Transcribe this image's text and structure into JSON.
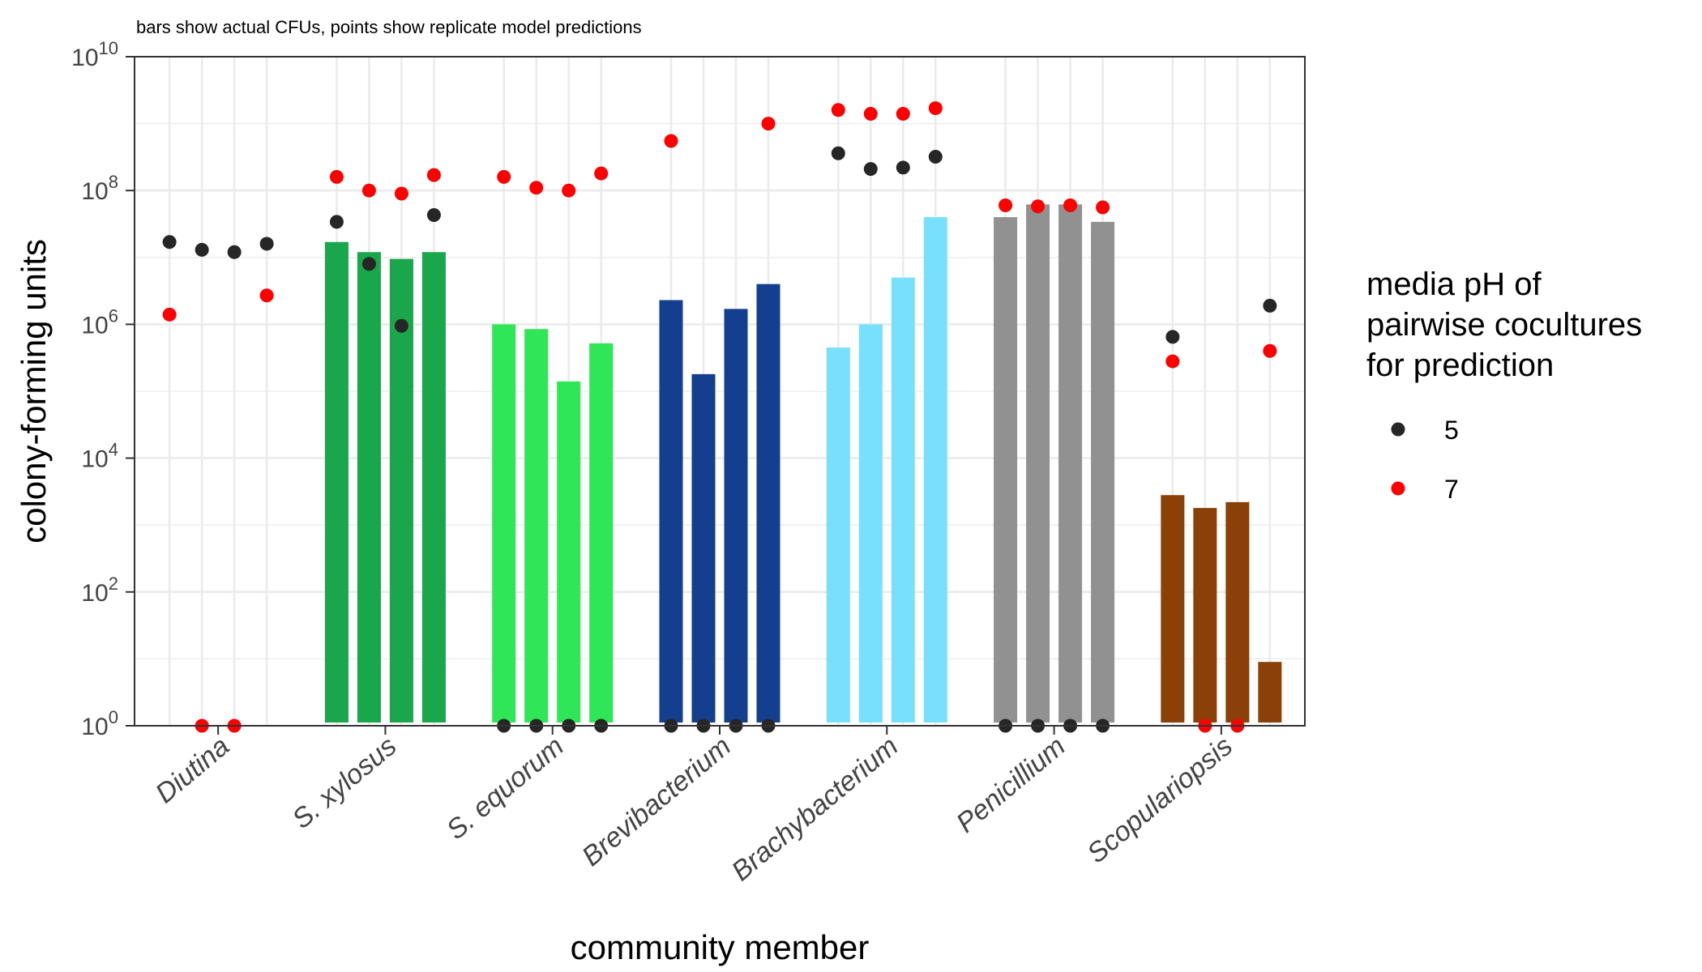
{
  "chart_data": {
    "type": "bar",
    "subtitle": "bars show actual CFUs, points show replicate model predictions",
    "xlabel": "community member",
    "ylabel": "colony-forming units",
    "y_scale": "log10",
    "ylim": [
      1,
      10000000000
    ],
    "y_ticks": [
      {
        "value": 1,
        "base": "10",
        "exp": "0"
      },
      {
        "value": 100,
        "base": "10",
        "exp": "2"
      },
      {
        "value": 10000,
        "base": "10",
        "exp": "4"
      },
      {
        "value": 1000000,
        "base": "10",
        "exp": "6"
      },
      {
        "value": 100000000,
        "base": "10",
        "exp": "8"
      },
      {
        "value": 10000000000,
        "base": "10",
        "exp": "10"
      }
    ],
    "categories": [
      "Diutina",
      "S. xylosus",
      "S. equorum",
      "Brevibacterium",
      "Brachybacterium",
      "Penicillium",
      "Scopulariopsis"
    ],
    "bar_colors": [
      "#1aa64a",
      "#1aa64a",
      "#2ee656",
      "#143f8f",
      "#78e0fa",
      "#919191",
      "#8b4008"
    ],
    "bars_actual_cfu": [
      [
        0,
        0,
        0,
        0
      ],
      [
        17000000,
        12000000,
        9500000,
        12000000
      ],
      [
        1000000,
        850000,
        140000,
        520000
      ],
      [
        2300000,
        180000,
        1700000,
        4000000
      ],
      [
        450000,
        1000000,
        5000000,
        40000000
      ],
      [
        40000000,
        62000000,
        62000000,
        34000000
      ],
      [
        2800,
        1800,
        2200,
        9
      ]
    ],
    "series": [
      {
        "name": "5",
        "color": "#262626",
        "values": [
          [
            17000000,
            13000000,
            12000000,
            16000000
          ],
          [
            34000000,
            8000000,
            950000,
            43000000
          ],
          [
            1,
            1,
            1,
            1
          ],
          [
            1,
            1,
            1,
            1
          ],
          [
            360000000,
            210000000,
            220000000,
            320000000
          ],
          [
            1,
            1,
            1,
            1
          ],
          [
            650000,
            null,
            null,
            1900000
          ]
        ]
      },
      {
        "name": "7",
        "color": "#ff0000",
        "values": [
          [
            1400000,
            1,
            1,
            2700000
          ],
          [
            160000000,
            100000000,
            90000000,
            170000000
          ],
          [
            160000000,
            110000000,
            100000000,
            180000000
          ],
          [
            550000000,
            null,
            null,
            1000000000
          ],
          [
            1600000000,
            1400000000,
            1400000000,
            1700000000
          ],
          [
            60000000,
            58000000,
            60000000,
            56000000
          ],
          [
            280000,
            1,
            1,
            400000
          ]
        ]
      }
    ],
    "legend": {
      "title_lines": [
        "media pH of",
        "pairwise cocultures",
        "for prediction"
      ],
      "placement": "right",
      "entries": [
        "5",
        "7"
      ]
    },
    "grid": true
  }
}
